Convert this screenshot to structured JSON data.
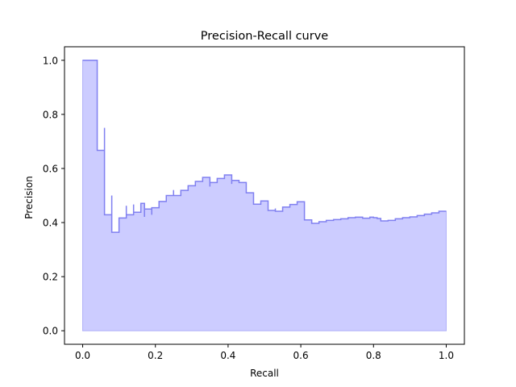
{
  "chart_data": {
    "type": "area",
    "title": "Precision-Recall curve",
    "xlabel": "Recall",
    "ylabel": "Precision",
    "xlim": [
      -0.05,
      1.05
    ],
    "ylim": [
      -0.05,
      1.05
    ],
    "xticks": [
      0.0,
      0.2,
      0.4,
      0.6,
      0.8,
      1.0
    ],
    "xtick_labels": [
      "0.0",
      "0.2",
      "0.4",
      "0.6",
      "0.8",
      "1.0"
    ],
    "yticks": [
      0.0,
      0.2,
      0.4,
      0.6,
      0.8,
      1.0
    ],
    "ytick_labels": [
      "0.0",
      "0.2",
      "0.4",
      "0.6",
      "0.8",
      "1.0"
    ],
    "grid": false,
    "series": [
      {
        "step": "post",
        "recall": [
          0.0,
          0.04,
          0.04,
          0.06,
          0.06,
          0.08,
          0.08,
          0.1,
          0.12,
          0.12,
          0.14,
          0.14,
          0.16,
          0.17,
          0.17,
          0.19,
          0.19,
          0.21,
          0.23,
          0.25,
          0.25,
          0.27,
          0.29,
          0.31,
          0.33,
          0.35,
          0.35,
          0.37,
          0.39,
          0.41,
          0.41,
          0.43,
          0.45,
          0.47,
          0.49,
          0.51,
          0.51,
          0.53,
          0.53,
          0.55,
          0.57,
          0.59,
          0.61,
          0.63,
          0.65,
          0.67,
          0.69,
          0.71,
          0.73,
          0.75,
          0.77,
          0.79,
          0.8,
          0.81,
          0.82,
          0.84,
          0.86,
          0.88,
          0.9,
          0.92,
          0.94,
          0.96,
          0.98,
          1.0
        ],
        "precision": [
          1.0,
          1.0,
          0.667,
          0.75,
          0.429,
          0.5,
          0.364,
          0.417,
          0.462,
          0.429,
          0.467,
          0.438,
          0.471,
          0.421,
          0.45,
          0.429,
          0.455,
          0.478,
          0.5,
          0.52,
          0.5,
          0.519,
          0.536,
          0.552,
          0.567,
          0.533,
          0.548,
          0.563,
          0.576,
          0.543,
          0.556,
          0.548,
          0.51,
          0.468,
          0.48,
          0.455,
          0.445,
          0.452,
          0.442,
          0.457,
          0.467,
          0.477,
          0.41,
          0.397,
          0.403,
          0.408,
          0.411,
          0.414,
          0.418,
          0.42,
          0.416,
          0.42,
          0.418,
          0.415,
          0.406,
          0.408,
          0.414,
          0.418,
          0.421,
          0.426,
          0.431,
          0.436,
          0.442,
          0.442
        ],
        "color": "#0000ff",
        "fill_alpha": 0.2,
        "line_alpha": 0.2
      }
    ]
  },
  "colors": {
    "fill": "#ccccff",
    "line": "#8080f0",
    "fill_edge": "#b0b0f8",
    "axis": "#000000",
    "background": "#ffffff"
  }
}
